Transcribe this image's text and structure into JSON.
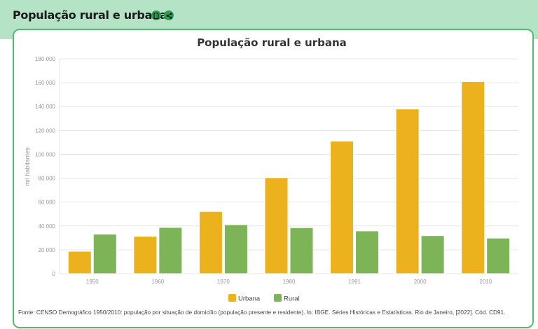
{
  "page": {
    "title": "População rural e urbana",
    "icons": [
      "document-icon",
      "share-icon"
    ]
  },
  "source": "Fonte: CENSO Demográfico 1950/2010: população por situação de domicílio (população presente e residente). In: IBGE. Séries Históricas e Estatísticas. Rio de Janeiro, [2022]. Cód. CD91.",
  "chart_data": {
    "type": "bar",
    "title": "População rural e urbana",
    "xlabel": "",
    "ylabel": "mil habitantes",
    "ylim": [
      0,
      180000
    ],
    "yticks": [
      "0",
      "20 000",
      "40 000",
      "60 000",
      "80 000",
      "100 000",
      "120 000",
      "140 000",
      "160 000",
      "180 000"
    ],
    "grid": true,
    "legend": "bottom",
    "categories": [
      "1950",
      "1960",
      "1970",
      "1980",
      "1991",
      "2000",
      "2010"
    ],
    "series": [
      {
        "name": "Urbana",
        "color": "#ebb21d",
        "values": [
          18783,
          31303,
          52085,
          80436,
          110991,
          137954,
          160926
        ]
      },
      {
        "name": "Rural",
        "color": "#7db457",
        "values": [
          33162,
          38767,
          41054,
          38566,
          35834,
          31845,
          29830
        ]
      }
    ]
  }
}
